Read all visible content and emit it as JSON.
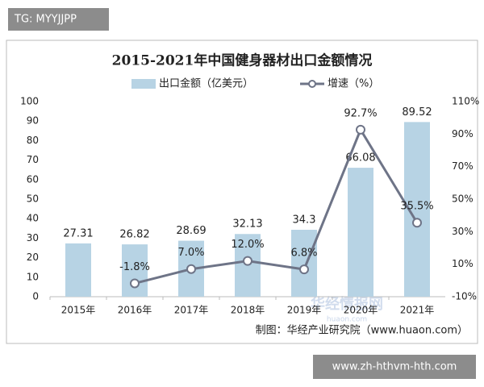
{
  "overlay": {
    "tag": "TG: MYYJJPP",
    "url": "www.zh-hthvm-hth.com",
    "watermark": "华经情报网",
    "watermark_sub": "huaon.com"
  },
  "chart_data": {
    "type": "bar",
    "title": "2015-2021年中国健身器材出口金额情况",
    "source": "制图：华经产业研究院（www.huaon.com）",
    "categories": [
      "2015年",
      "2016年",
      "2017年",
      "2018年",
      "2019年",
      "2020年",
      "2021年"
    ],
    "series": [
      {
        "name": "出口金额（亿美元）",
        "type": "bar",
        "color": "#b7d3e4",
        "values": [
          27.31,
          26.82,
          28.69,
          32.13,
          34.3,
          66.08,
          89.52
        ]
      },
      {
        "name": "增速（%）",
        "type": "line",
        "axis": "y2",
        "color": "#6e7487",
        "values": [
          null,
          -1.8,
          7.0,
          12.0,
          6.8,
          92.7,
          35.5
        ],
        "value_labels": [
          null,
          "-1.8%",
          "7.0%",
          "12.0%",
          "6.8%",
          "92.7%",
          "35.5%"
        ]
      }
    ],
    "ylim": [
      0,
      100
    ],
    "yticks": [
      0,
      10,
      20,
      30,
      40,
      50,
      60,
      70,
      80,
      90,
      100
    ],
    "y2lim": [
      -10,
      110
    ],
    "y2ticks": [
      {
        "value": -10,
        "label": "-10%"
      },
      {
        "value": 10,
        "label": "10%"
      },
      {
        "value": 30,
        "label": "30%"
      },
      {
        "value": 50,
        "label": "50%"
      },
      {
        "value": 70,
        "label": "70%"
      },
      {
        "value": 90,
        "label": "90%"
      },
      {
        "value": 110,
        "label": "110%"
      }
    ],
    "grid": false
  }
}
